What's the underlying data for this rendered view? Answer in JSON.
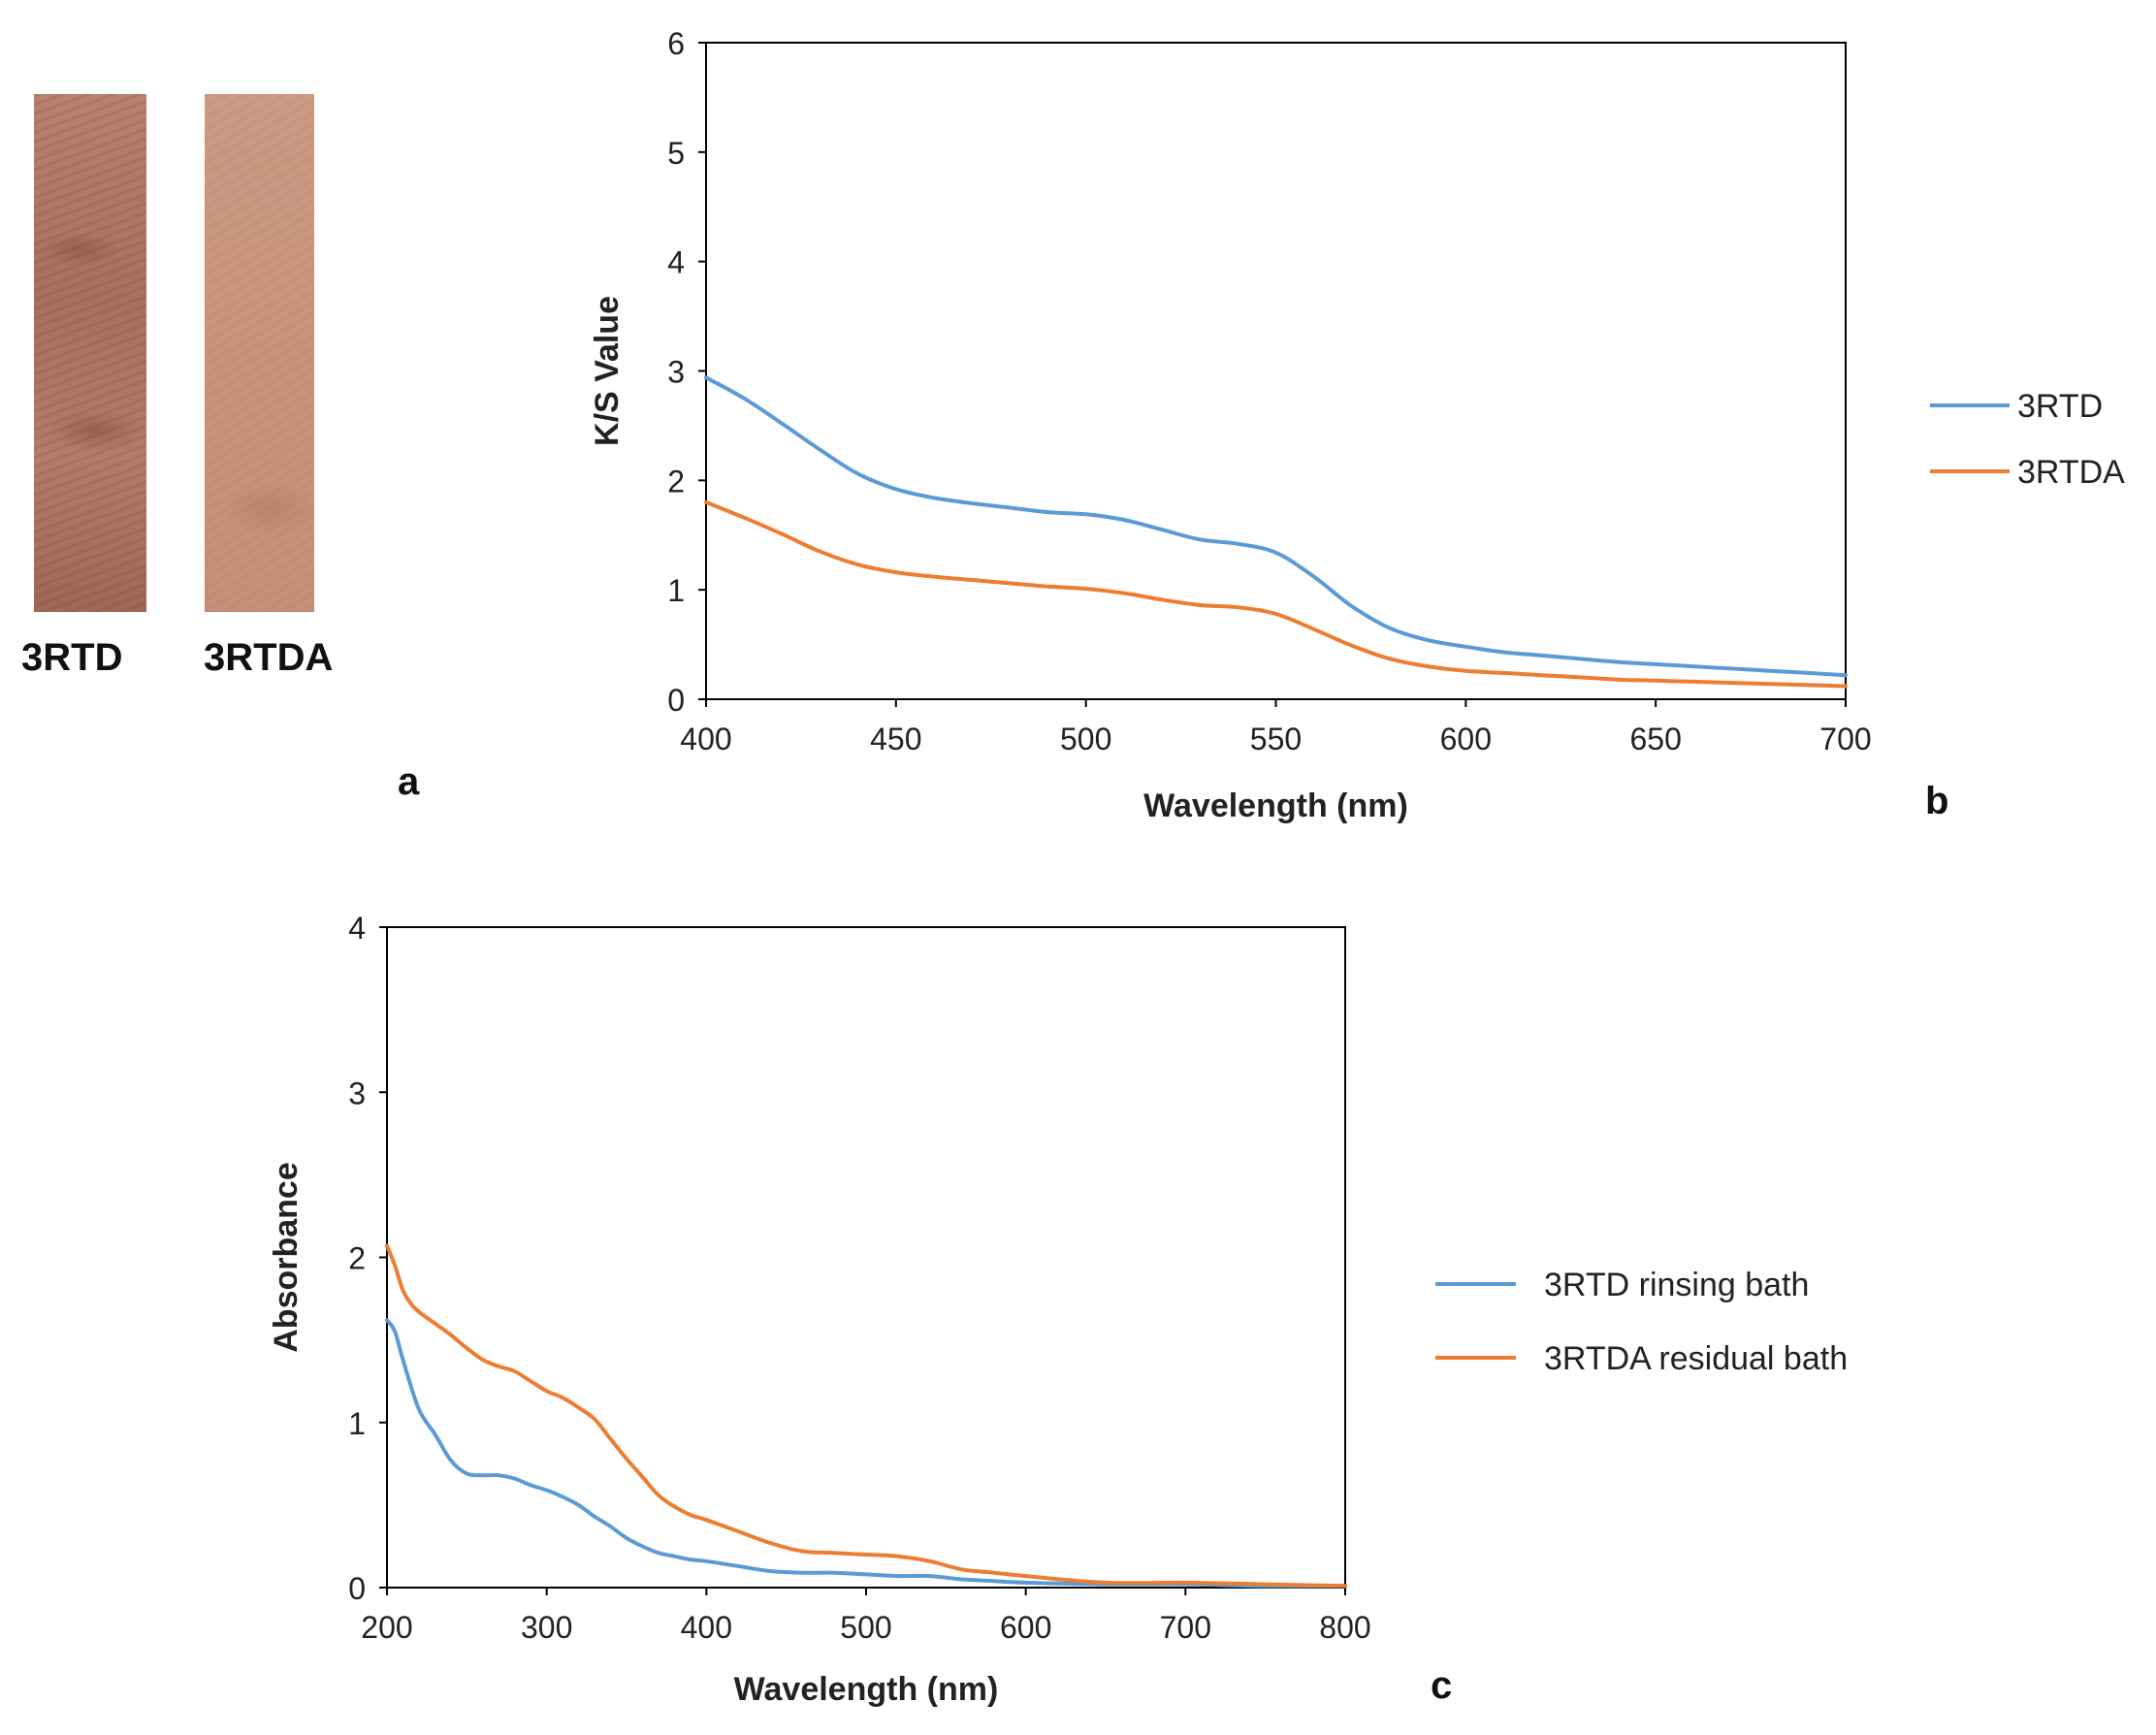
{
  "panel_a": {
    "letter": "a",
    "swatches": [
      {
        "label": "3RTD",
        "color": "#ad7663"
      },
      {
        "label": "3RTDA",
        "color": "#c8937c"
      }
    ]
  },
  "panel_letters": {
    "b": "b",
    "c": "c"
  },
  "chart_data": [
    {
      "id": "b",
      "type": "line",
      "title": "",
      "xlabel": "Wavelength (nm)",
      "ylabel": "K/S Value",
      "xlim": [
        400,
        700
      ],
      "ylim": [
        0,
        6
      ],
      "xticks": [
        400,
        450,
        500,
        550,
        600,
        650,
        700
      ],
      "yticks": [
        0,
        1,
        2,
        3,
        4,
        5,
        6
      ],
      "legend_position": "right",
      "series": [
        {
          "name": "3RTD",
          "color": "#5b9bd5",
          "x": [
            400,
            410,
            420,
            430,
            440,
            450,
            460,
            470,
            480,
            490,
            500,
            510,
            520,
            530,
            540,
            550,
            560,
            570,
            580,
            590,
            600,
            610,
            620,
            630,
            640,
            650,
            660,
            670,
            680,
            690,
            700
          ],
          "y": [
            2.94,
            2.75,
            2.52,
            2.28,
            2.06,
            1.92,
            1.84,
            1.79,
            1.75,
            1.71,
            1.69,
            1.64,
            1.55,
            1.46,
            1.42,
            1.34,
            1.12,
            0.85,
            0.65,
            0.54,
            0.48,
            0.43,
            0.4,
            0.37,
            0.34,
            0.32,
            0.3,
            0.28,
            0.26,
            0.24,
            0.22
          ]
        },
        {
          "name": "3RTDA",
          "color": "#ed7d31",
          "x": [
            400,
            410,
            420,
            430,
            440,
            450,
            460,
            470,
            480,
            490,
            500,
            510,
            520,
            530,
            540,
            550,
            560,
            570,
            580,
            590,
            600,
            610,
            620,
            630,
            640,
            650,
            660,
            670,
            680,
            690,
            700
          ],
          "y": [
            1.8,
            1.66,
            1.51,
            1.35,
            1.23,
            1.16,
            1.12,
            1.09,
            1.06,
            1.03,
            1.01,
            0.97,
            0.91,
            0.86,
            0.84,
            0.78,
            0.64,
            0.49,
            0.37,
            0.3,
            0.26,
            0.24,
            0.22,
            0.2,
            0.18,
            0.17,
            0.16,
            0.15,
            0.14,
            0.13,
            0.12
          ]
        }
      ]
    },
    {
      "id": "c",
      "type": "line",
      "title": "",
      "xlabel": "Wavelength (nm)",
      "ylabel": "Absorbance",
      "xlim": [
        200,
        800
      ],
      "ylim": [
        0,
        4
      ],
      "xticks": [
        200,
        300,
        400,
        500,
        600,
        700,
        800
      ],
      "yticks": [
        0,
        1,
        2,
        3,
        4
      ],
      "legend_position": "right",
      "series": [
        {
          "name": "3RTD rinsing bath",
          "color": "#5b9bd5",
          "x": [
            200,
            205,
            210,
            220,
            230,
            240,
            250,
            260,
            270,
            280,
            290,
            300,
            310,
            320,
            330,
            340,
            350,
            360,
            370,
            380,
            390,
            400,
            420,
            440,
            460,
            480,
            500,
            520,
            540,
            560,
            580,
            600,
            650,
            700,
            750,
            800
          ],
          "y": [
            1.62,
            1.55,
            1.38,
            1.08,
            0.93,
            0.77,
            0.69,
            0.68,
            0.68,
            0.66,
            0.62,
            0.59,
            0.55,
            0.5,
            0.43,
            0.37,
            0.3,
            0.25,
            0.21,
            0.19,
            0.17,
            0.16,
            0.13,
            0.1,
            0.09,
            0.09,
            0.08,
            0.07,
            0.07,
            0.05,
            0.04,
            0.03,
            0.02,
            0.02,
            0.01,
            0.01
          ]
        },
        {
          "name": "3RTDA residual bath",
          "color": "#ed7d31",
          "x": [
            200,
            205,
            210,
            215,
            220,
            230,
            240,
            250,
            260,
            270,
            280,
            290,
            300,
            310,
            320,
            330,
            340,
            350,
            360,
            370,
            380,
            390,
            400,
            420,
            440,
            460,
            480,
            500,
            520,
            540,
            560,
            580,
            600,
            650,
            700,
            750,
            800
          ],
          "y": [
            2.07,
            1.95,
            1.8,
            1.72,
            1.67,
            1.6,
            1.53,
            1.45,
            1.38,
            1.34,
            1.31,
            1.25,
            1.19,
            1.15,
            1.09,
            1.02,
            0.9,
            0.78,
            0.67,
            0.56,
            0.49,
            0.44,
            0.41,
            0.34,
            0.27,
            0.22,
            0.21,
            0.2,
            0.19,
            0.16,
            0.11,
            0.09,
            0.07,
            0.03,
            0.03,
            0.02,
            0.01
          ]
        }
      ]
    }
  ]
}
